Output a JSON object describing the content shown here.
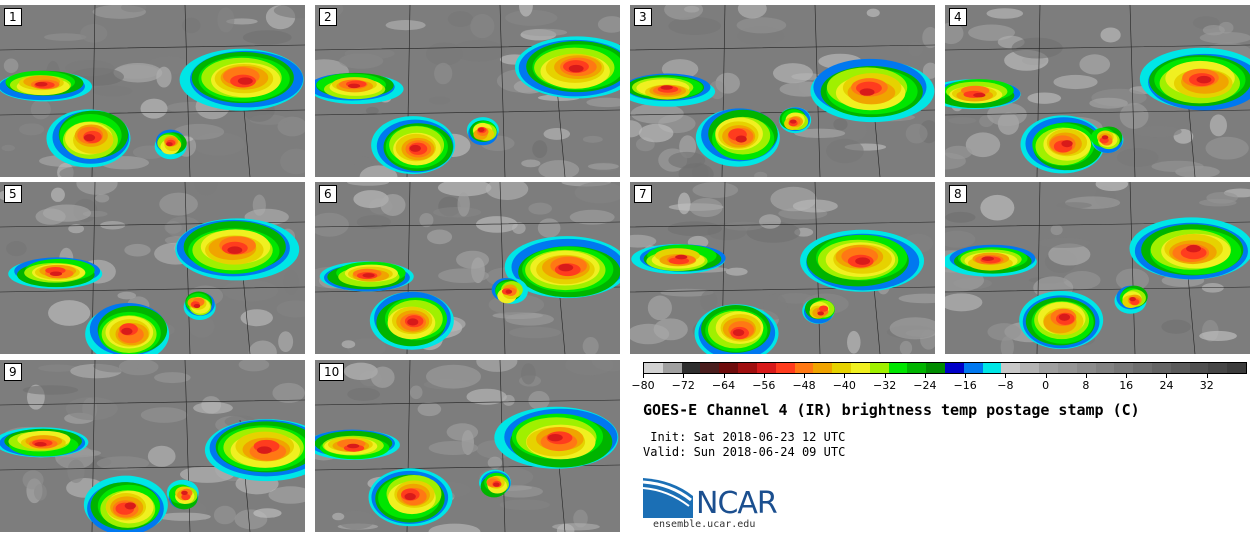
{
  "panels": [
    {
      "label": "1"
    },
    {
      "label": "2"
    },
    {
      "label": "3"
    },
    {
      "label": "4"
    },
    {
      "label": "5"
    },
    {
      "label": "6"
    },
    {
      "label": "7"
    },
    {
      "label": "8"
    },
    {
      "label": "9"
    },
    {
      "label": "10"
    }
  ],
  "colorbar": {
    "ticks": [
      "−80",
      "−72",
      "−64",
      "−56",
      "−48",
      "−40",
      "−32",
      "−24",
      "−16",
      "−8",
      "0",
      "8",
      "16",
      "24",
      "32"
    ],
    "tick_values": [
      -80,
      -72,
      -64,
      -56,
      -48,
      -40,
      -32,
      -24,
      -16,
      -8,
      0,
      8,
      16,
      24,
      32
    ],
    "range": [
      -80,
      40
    ],
    "colors": [
      "#d2d2d2",
      "#a0a0a0",
      "#2f2f2f",
      "#4a1e1e",
      "#6e0c0c",
      "#a00f0f",
      "#d81a1a",
      "#ff3c1e",
      "#ff7814",
      "#f0a400",
      "#e6d200",
      "#f0f020",
      "#a0f000",
      "#00e600",
      "#00b400",
      "#008c00",
      "#0000c8",
      "#0078f0",
      "#00e6e6",
      "#c8c8c8",
      "#b4b4b4",
      "#a0a0a0",
      "#969696",
      "#8c8c8c",
      "#828282",
      "#787878",
      "#6e6e6e",
      "#646464",
      "#5a5a5a",
      "#505050",
      "#464646",
      "#3c3c3c"
    ]
  },
  "title": "GOES-E Channel 4 (IR) brightness temp postage stamp (C)",
  "init": " Init: Sat 2018-06-23 12 UTC",
  "valid": "Valid: Sun 2018-06-24 09 UTC",
  "logo": {
    "text": "NCAR",
    "url": "ensemble.ucar.edu"
  }
}
